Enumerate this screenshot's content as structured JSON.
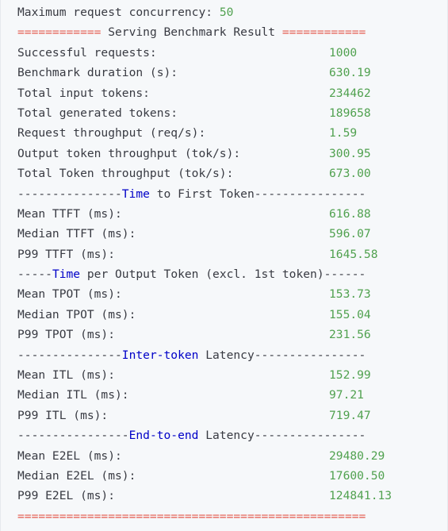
{
  "header": {
    "label": "Maximum request concurrency:",
    "value": "50"
  },
  "title_line": {
    "left_sep": "============",
    "title": " Serving Benchmark Result ",
    "right_sep": "============"
  },
  "summary_rows": [
    {
      "key": "Successful requests:",
      "value": "1000"
    },
    {
      "key": "Benchmark duration (s):",
      "value": "630.19"
    },
    {
      "key": "Total input tokens:",
      "value": "234462"
    },
    {
      "key": "Total generated tokens:",
      "value": "189658"
    },
    {
      "key": "Request throughput (req/s):",
      "value": "1.59"
    },
    {
      "key": "Output token throughput (tok/s):",
      "value": "300.95"
    },
    {
      "key": "Total Token throughput (tok/s):",
      "value": "673.00"
    }
  ],
  "sections": [
    {
      "left_dashes": "---------------",
      "keyword": "Time",
      "rest": " to First Token",
      "right_dashes": "----------------",
      "rows": [
        {
          "key": "Mean TTFT (ms):",
          "value": "616.88"
        },
        {
          "key": "Median TTFT (ms):",
          "value": "596.07"
        },
        {
          "key": "P99 TTFT (ms):",
          "value": "1645.58"
        }
      ]
    },
    {
      "left_dashes": "-----",
      "keyword": "Time",
      "rest": " per Output Token (excl. 1st token)",
      "right_dashes": "------",
      "rows": [
        {
          "key": "Mean TPOT (ms):",
          "value": "153.73"
        },
        {
          "key": "Median TPOT (ms):",
          "value": "155.04"
        },
        {
          "key": "P99 TPOT (ms):",
          "value": "231.56"
        }
      ]
    },
    {
      "left_dashes": "---------------",
      "keyword": "Inter-token",
      "rest": " Latency",
      "right_dashes": "----------------",
      "rows": [
        {
          "key": "Mean ITL (ms):",
          "value": "152.99"
        },
        {
          "key": "Median ITL (ms):",
          "value": "97.21"
        },
        {
          "key": "P99 ITL (ms):",
          "value": "719.47"
        }
      ]
    },
    {
      "left_dashes": "----------------",
      "keyword": "End-to-end",
      "rest": " Latency",
      "right_dashes": "----------------",
      "rows": [
        {
          "key": "Mean E2EL (ms):",
          "value": "29480.29"
        },
        {
          "key": "Median E2EL (ms):",
          "value": "17600.50"
        },
        {
          "key": "P99 E2EL (ms):",
          "value": "124841.13"
        }
      ]
    }
  ],
  "footer_line": "==================================================",
  "colors": {
    "background": "#f6f8fa",
    "text": "#383a42",
    "number": "#50a14f",
    "separator": "#e45649",
    "keyword": "#0000c8"
  }
}
